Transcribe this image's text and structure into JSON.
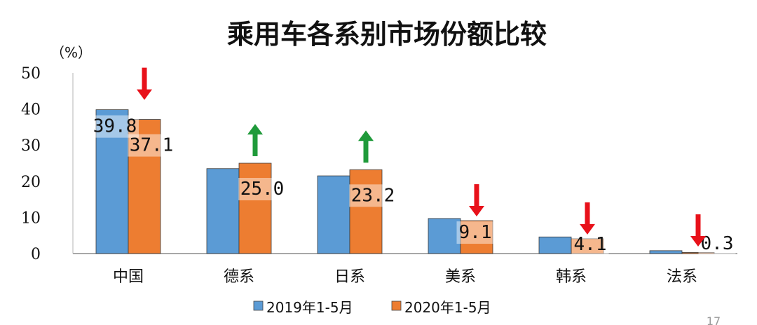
{
  "chart_data": {
    "type": "bar",
    "title": "乘用车各系别市场份额比较",
    "ylabel": "（%）",
    "xlabel": "",
    "ylim": [
      0,
      50
    ],
    "yticks": [
      0,
      10,
      20,
      30,
      40,
      50
    ],
    "grid": false,
    "legend_position": "bottom",
    "categories": [
      "中国",
      "德系",
      "日系",
      "美系",
      "韩系",
      "法系"
    ],
    "series": [
      {
        "name": "2019年1-5月",
        "color": "#5b9bd5",
        "values": [
          39.8,
          23.5,
          21.5,
          9.7,
          4.6,
          0.8
        ]
      },
      {
        "name": "2020年1-5月",
        "color": "#ed7d31",
        "values": [
          37.1,
          25.0,
          23.2,
          9.1,
          4.1,
          0.3
        ],
        "data_labels": [
          "37.1",
          "25.0",
          "23.2",
          "9.1",
          "4.1",
          "0.3"
        ]
      }
    ],
    "extra_labels": [
      {
        "category": "中国",
        "series": "2019年1-5月",
        "text": "39.8"
      }
    ],
    "trend_arrows": [
      {
        "category": "中国",
        "direction": "down",
        "color": "#e8111a"
      },
      {
        "category": "德系",
        "direction": "up",
        "color": "#1f9a3a"
      },
      {
        "category": "日系",
        "direction": "up",
        "color": "#1f9a3a"
      },
      {
        "category": "美系",
        "direction": "down",
        "color": "#e8111a"
      },
      {
        "category": "韩系",
        "direction": "down",
        "color": "#e8111a"
      },
      {
        "category": "法系",
        "direction": "down",
        "color": "#e8111a"
      }
    ]
  },
  "page_number": "17"
}
